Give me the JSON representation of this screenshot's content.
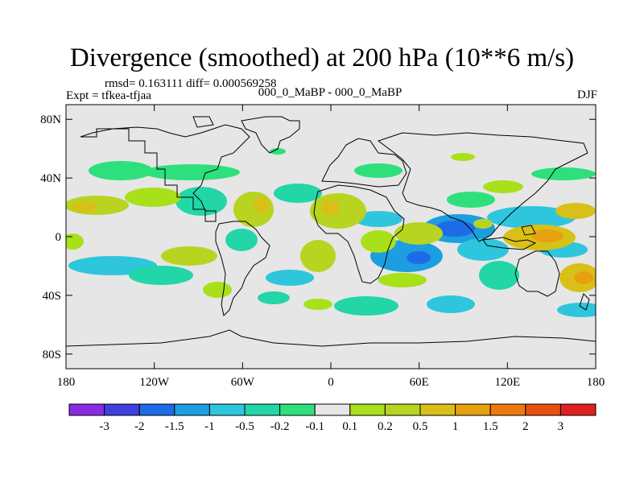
{
  "title": "Divergence (smoothed) at 200 hPa (10**6 m/s)",
  "stats": "rmsd= 0.163111 diff= 0.000569258",
  "expt_left": "Expt = tfkea-tfjaa",
  "expt_center": "000_0_MaBP - 000_0_MaBP",
  "season": "DJF",
  "colors": {
    "background": "#e6e6e6",
    "outline": "#000000"
  },
  "map": {
    "lon_range": [
      -180,
      180
    ],
    "lat_range": [
      -90,
      90
    ],
    "x_ticks": [
      {
        "lon": -180,
        "label": "180"
      },
      {
        "lon": -120,
        "label": "120W"
      },
      {
        "lon": -60,
        "label": "60W"
      },
      {
        "lon": 0,
        "label": "0"
      },
      {
        "lon": 60,
        "label": "60E"
      },
      {
        "lon": 120,
        "label": "120E"
      },
      {
        "lon": 180,
        "label": "180"
      }
    ],
    "y_ticks": [
      {
        "lat": 80,
        "label": "80N"
      },
      {
        "lat": 40,
        "label": "40N"
      },
      {
        "lat": 0,
        "label": "0"
      },
      {
        "lat": -40,
        "label": "40S"
      },
      {
        "lat": -80,
        "label": "80S"
      }
    ]
  },
  "colorbar": {
    "colors": [
      "#8a2be2",
      "#4040e0",
      "#1e6be8",
      "#1c9ee0",
      "#2ec6dc",
      "#22d6a8",
      "#2ee07c",
      "#e6e6e6",
      "#a8e01a",
      "#b8d420",
      "#d8c018",
      "#e6a010",
      "#ee7810",
      "#e85010",
      "#e02020"
    ],
    "labels": [
      "-3",
      "-2",
      "-1.5",
      "-1",
      "-0.5",
      "-0.2",
      "-0.1",
      "0.1",
      "0.2",
      "0.5",
      "1",
      "1.5",
      "2",
      "3"
    ]
  }
}
